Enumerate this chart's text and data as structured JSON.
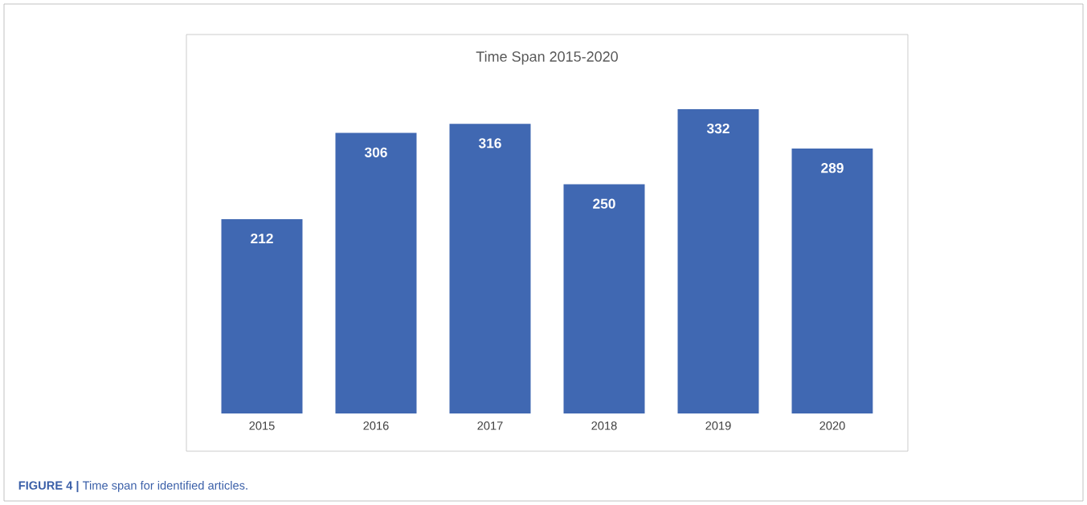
{
  "chart_data": {
    "type": "bar",
    "title": "Time Span 2015-2020",
    "categories": [
      "2015",
      "2016",
      "2017",
      "2018",
      "2019",
      "2020"
    ],
    "values": [
      212,
      306,
      316,
      250,
      332,
      289
    ],
    "color": "#4068b2",
    "data_labels": true,
    "grid": false,
    "annotations": [
      "**FIGURE 4 |** Time span for identified articles."
    ]
  }
}
